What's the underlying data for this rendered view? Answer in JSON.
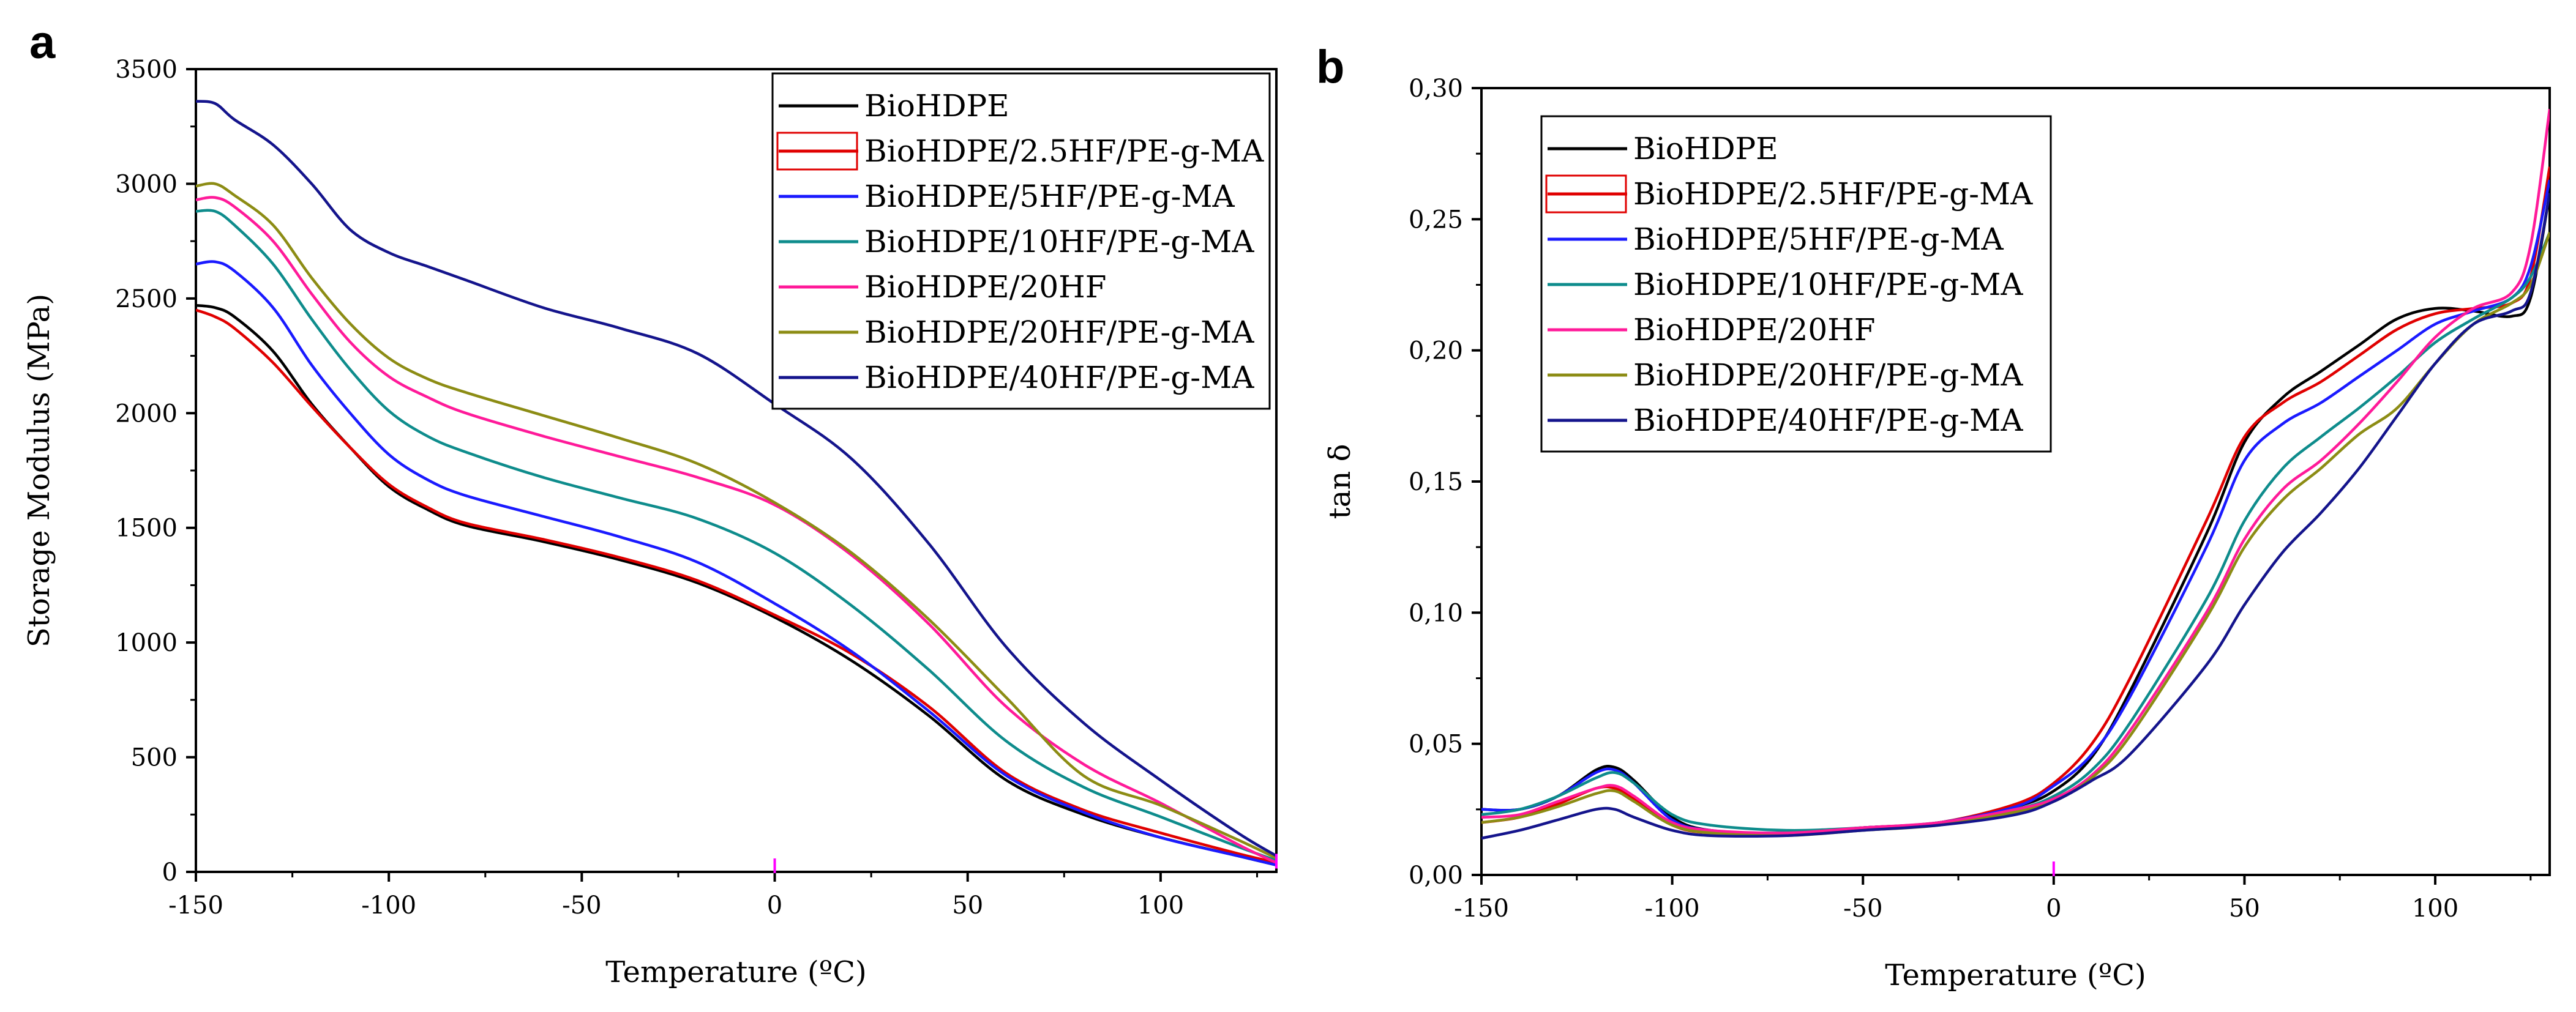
{
  "colors": {
    "BioHDPE": "#000000",
    "BioHDPE/2.5HF/PE-g-MA": "#e00000",
    "BioHDPE/5HF/PE-g-MA": "#1a1aff",
    "BioHDPE/10HF/PE-g-MA": "#0e8c8c",
    "BioHDPE/20HF": "#ff1a99",
    "BioHDPE/20HF/PE-g-MA": "#8c8c14",
    "BioHDPE/40HF/PE-g-MA": "#14148c",
    "marker": "#ff00ff"
  },
  "chart_data": [
    {
      "panel_label": "a",
      "type": "line",
      "title": "",
      "xlabel": "Temperature (ºC)",
      "ylabel": "Storage Modulus (MPa)",
      "xlim": [
        -150,
        130
      ],
      "ylim": [
        0,
        3500
      ],
      "xticks": [
        -150,
        -100,
        -50,
        0,
        50,
        100
      ],
      "xtick_labels": [
        "-150",
        "-100",
        "-50",
        "0",
        "50",
        "100"
      ],
      "yticks": [
        0,
        500,
        1000,
        1500,
        2000,
        2500,
        3000,
        3500
      ],
      "ytick_labels": [
        "0",
        "500",
        "1000",
        "1500",
        "2000",
        "2500",
        "3000",
        "3500"
      ],
      "legend_position": "top-right",
      "legend": [
        "BioHDPE",
        "BioHDPE/2.5HF/PE-g-MA",
        "BioHDPE/5HF/PE-g-MA",
        "BioHDPE/10HF/PE-g-MA",
        "BioHDPE/20HF",
        "BioHDPE/20HF/PE-g-MA",
        "BioHDPE/40HF/PE-g-MA"
      ],
      "markers": [
        {
          "x": 0,
          "y": 0
        },
        {
          "x": 130,
          "y": 20
        }
      ],
      "series": [
        {
          "name": "BioHDPE",
          "x": [
            -150,
            -145,
            -140,
            -130,
            -120,
            -110,
            -100,
            -90,
            -80,
            -60,
            -40,
            -20,
            0,
            20,
            40,
            60,
            80,
            100,
            120,
            130
          ],
          "y": [
            2470,
            2460,
            2420,
            2270,
            2040,
            1850,
            1680,
            1580,
            1510,
            1440,
            1360,
            1260,
            1110,
            920,
            680,
            400,
            250,
            150,
            70,
            30
          ]
        },
        {
          "name": "BioHDPE/2.5HF/PE-g-MA",
          "x": [
            -150,
            -145,
            -140,
            -130,
            -120,
            -110,
            -100,
            -90,
            -80,
            -60,
            -40,
            -20,
            0,
            20,
            40,
            60,
            80,
            100,
            120,
            130
          ],
          "y": [
            2450,
            2420,
            2370,
            2220,
            2030,
            1850,
            1690,
            1590,
            1520,
            1450,
            1370,
            1270,
            1120,
            950,
            720,
            430,
            270,
            170,
            80,
            40
          ]
        },
        {
          "name": "BioHDPE/5HF/PE-g-MA",
          "x": [
            -150,
            -145,
            -140,
            -130,
            -120,
            -110,
            -100,
            -90,
            -80,
            -60,
            -40,
            -20,
            0,
            20,
            40,
            60,
            80,
            100,
            120,
            130
          ],
          "y": [
            2650,
            2660,
            2620,
            2460,
            2210,
            2000,
            1820,
            1710,
            1640,
            1550,
            1460,
            1350,
            1170,
            960,
            700,
            420,
            260,
            150,
            70,
            30
          ]
        },
        {
          "name": "BioHDPE/10HF/PE-g-MA",
          "x": [
            -150,
            -145,
            -140,
            -130,
            -120,
            -110,
            -100,
            -90,
            -80,
            -60,
            -40,
            -20,
            0,
            20,
            40,
            60,
            80,
            100,
            120,
            130
          ],
          "y": [
            2880,
            2880,
            2820,
            2650,
            2410,
            2190,
            2010,
            1900,
            1830,
            1720,
            1630,
            1540,
            1390,
            1160,
            880,
            570,
            370,
            240,
            110,
            50
          ]
        },
        {
          "name": "BioHDPE/20HF",
          "x": [
            -150,
            -145,
            -140,
            -130,
            -120,
            -110,
            -100,
            -90,
            -80,
            -60,
            -40,
            -20,
            0,
            20,
            40,
            60,
            80,
            100,
            120,
            130
          ],
          "y": [
            2930,
            2940,
            2900,
            2750,
            2520,
            2310,
            2160,
            2070,
            2000,
            1900,
            1810,
            1720,
            1600,
            1380,
            1080,
            720,
            470,
            300,
            120,
            40
          ]
        },
        {
          "name": "BioHDPE/20HF/PE-g-MA",
          "x": [
            -150,
            -145,
            -140,
            -130,
            -120,
            -110,
            -100,
            -90,
            -80,
            -60,
            -40,
            -20,
            0,
            20,
            40,
            60,
            80,
            100,
            120,
            130
          ],
          "y": [
            2990,
            3000,
            2950,
            2820,
            2590,
            2390,
            2240,
            2150,
            2090,
            1990,
            1890,
            1780,
            1610,
            1390,
            1100,
            760,
            420,
            290,
            140,
            60
          ]
        },
        {
          "name": "BioHDPE/40HF/PE-g-MA",
          "x": [
            -150,
            -145,
            -140,
            -130,
            -120,
            -110,
            -100,
            -90,
            -80,
            -60,
            -40,
            -20,
            0,
            20,
            40,
            60,
            80,
            100,
            120,
            130
          ],
          "y": [
            3360,
            3350,
            3280,
            3170,
            3000,
            2800,
            2700,
            2640,
            2580,
            2460,
            2370,
            2260,
            2040,
            1800,
            1430,
            980,
            650,
            400,
            170,
            70
          ]
        }
      ]
    },
    {
      "panel_label": "b",
      "type": "line",
      "title": "",
      "xlabel": "Temperature (ºC)",
      "ylabel": "tan δ",
      "xlim": [
        -150,
        130
      ],
      "ylim": [
        0,
        0.3
      ],
      "xticks": [
        -150,
        -100,
        -50,
        0,
        50,
        100
      ],
      "xtick_labels": [
        "-150",
        "-100",
        "-50",
        "0",
        "50",
        "100"
      ],
      "yticks": [
        0,
        0.05,
        0.1,
        0.15,
        0.2,
        0.25,
        0.3
      ],
      "ytick_labels": [
        "0,00",
        "0,05",
        "0,10",
        "0,15",
        "0,20",
        "0,25",
        "0,30"
      ],
      "legend_position": "top-left",
      "legend": [
        "BioHDPE",
        "BioHDPE/2.5HF/PE-g-MA",
        "BioHDPE/5HF/PE-g-MA",
        "BioHDPE/10HF/PE-g-MA",
        "BioHDPE/20HF",
        "BioHDPE/20HF/PE-g-MA",
        "BioHDPE/40HF/PE-g-MA"
      ],
      "markers": [
        {
          "x": 0,
          "y": 0
        }
      ],
      "series": [
        {
          "name": "BioHDPE",
          "x": [
            -150,
            -140,
            -130,
            -120,
            -115,
            -110,
            -100,
            -90,
            -70,
            -50,
            -30,
            -10,
            0,
            10,
            20,
            40,
            50,
            60,
            70,
            80,
            90,
            100,
            110,
            120,
            125,
            130
          ],
          "y": [
            0.025,
            0.025,
            0.03,
            0.04,
            0.041,
            0.036,
            0.022,
            0.017,
            0.016,
            0.018,
            0.02,
            0.026,
            0.032,
            0.045,
            0.07,
            0.13,
            0.165,
            0.182,
            0.192,
            0.202,
            0.212,
            0.216,
            0.215,
            0.213,
            0.22,
            0.26
          ]
        },
        {
          "name": "BioHDPE/2.5HF/PE-g-MA",
          "x": [
            -150,
            -140,
            -130,
            -120,
            -115,
            -110,
            -100,
            -90,
            -70,
            -50,
            -30,
            -10,
            0,
            10,
            20,
            40,
            50,
            60,
            70,
            80,
            90,
            100,
            110,
            120,
            125,
            130
          ],
          "y": [
            0.02,
            0.022,
            0.027,
            0.033,
            0.033,
            0.029,
            0.019,
            0.016,
            0.016,
            0.018,
            0.02,
            0.027,
            0.035,
            0.05,
            0.075,
            0.135,
            0.167,
            0.18,
            0.188,
            0.198,
            0.208,
            0.214,
            0.216,
            0.218,
            0.228,
            0.27
          ]
        },
        {
          "name": "BioHDPE/5HF/PE-g-MA",
          "x": [
            -150,
            -140,
            -130,
            -120,
            -115,
            -110,
            -100,
            -90,
            -70,
            -50,
            -30,
            -10,
            0,
            10,
            20,
            40,
            50,
            60,
            70,
            80,
            90,
            100,
            110,
            120,
            125,
            130
          ],
          "y": [
            0.025,
            0.025,
            0.03,
            0.039,
            0.04,
            0.035,
            0.021,
            0.017,
            0.016,
            0.018,
            0.02,
            0.026,
            0.034,
            0.046,
            0.068,
            0.125,
            0.158,
            0.172,
            0.18,
            0.19,
            0.2,
            0.21,
            0.215,
            0.22,
            0.232,
            0.265
          ]
        },
        {
          "name": "BioHDPE/10HF/PE-g-MA",
          "x": [
            -150,
            -140,
            -130,
            -120,
            -115,
            -110,
            -100,
            -90,
            -70,
            -50,
            -30,
            -10,
            0,
            10,
            20,
            40,
            50,
            60,
            70,
            80,
            90,
            100,
            110,
            120,
            125,
            130
          ],
          "y": [
            0.023,
            0.025,
            0.03,
            0.037,
            0.039,
            0.035,
            0.023,
            0.019,
            0.017,
            0.018,
            0.02,
            0.025,
            0.03,
            0.04,
            0.058,
            0.105,
            0.135,
            0.155,
            0.167,
            0.178,
            0.19,
            0.203,
            0.212,
            0.22,
            0.228,
            0.245
          ]
        },
        {
          "name": "BioHDPE/20HF",
          "x": [
            -150,
            -140,
            -130,
            -120,
            -115,
            -110,
            -100,
            -90,
            -70,
            -50,
            -30,
            -10,
            0,
            10,
            20,
            40,
            50,
            60,
            70,
            80,
            90,
            100,
            110,
            120,
            125,
            130
          ],
          "y": [
            0.022,
            0.023,
            0.028,
            0.033,
            0.034,
            0.03,
            0.02,
            0.017,
            0.016,
            0.018,
            0.02,
            0.025,
            0.029,
            0.038,
            0.055,
            0.1,
            0.128,
            0.147,
            0.158,
            0.172,
            0.188,
            0.205,
            0.216,
            0.222,
            0.24,
            0.292
          ]
        },
        {
          "name": "BioHDPE/20HF/PE-g-MA",
          "x": [
            -150,
            -140,
            -130,
            -120,
            -115,
            -110,
            -100,
            -90,
            -70,
            -50,
            -30,
            -10,
            0,
            10,
            20,
            40,
            50,
            60,
            70,
            80,
            90,
            100,
            110,
            120,
            125,
            130
          ],
          "y": [
            0.02,
            0.022,
            0.026,
            0.031,
            0.032,
            0.028,
            0.019,
            0.016,
            0.015,
            0.017,
            0.019,
            0.024,
            0.028,
            0.037,
            0.053,
            0.098,
            0.125,
            0.143,
            0.155,
            0.168,
            0.178,
            0.195,
            0.21,
            0.218,
            0.225,
            0.245
          ]
        },
        {
          "name": "BioHDPE/40HF/PE-g-MA",
          "x": [
            -150,
            -140,
            -130,
            -120,
            -115,
            -110,
            -100,
            -90,
            -70,
            -50,
            -30,
            -10,
            0,
            10,
            20,
            40,
            50,
            60,
            70,
            80,
            90,
            100,
            110,
            120,
            125,
            130
          ],
          "y": [
            0.014,
            0.017,
            0.021,
            0.025,
            0.025,
            0.022,
            0.017,
            0.015,
            0.015,
            0.017,
            0.019,
            0.023,
            0.028,
            0.036,
            0.046,
            0.08,
            0.103,
            0.123,
            0.138,
            0.155,
            0.175,
            0.195,
            0.21,
            0.215,
            0.222,
            0.26
          ]
        }
      ]
    }
  ]
}
